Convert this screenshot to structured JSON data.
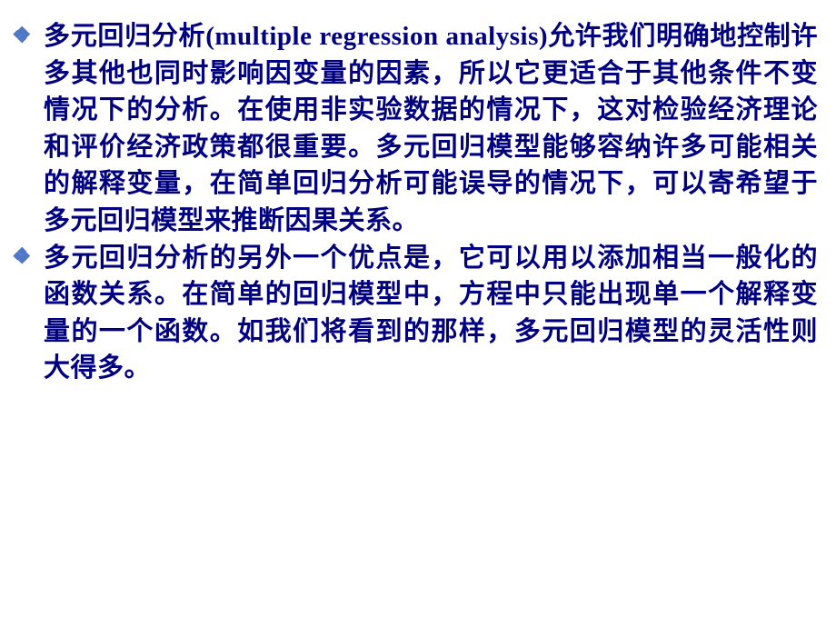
{
  "slide": {
    "text_color": "#000080",
    "background_color": "#ffffff",
    "bullet_icon_color": "#5078c8",
    "font_size": 29,
    "bullets": [
      {
        "text_parts": [
          {
            "type": "cjk",
            "text": "多元回归分析"
          },
          {
            "type": "en",
            "text": "(multiple regression analysis)"
          },
          {
            "type": "cjk",
            "text": "允许我们明确地控制许多其他也同时影响因变量的因素，所以它更适合于其他条件不变情况下的分析。在使用非实验数据的情况下，这对检验经济理论和评价经济政策都很重要。多元回归模型能够容纳许多可能相关的解释变量，在简单回归分析可能误导的情况下，可以寄希望于多元回归模型来推断因果关系。"
          }
        ]
      },
      {
        "text_parts": [
          {
            "type": "cjk",
            "text": "多元回归分析的另外一个优点是，它可以用以添加相当一般化的函数关系。在简单的回归模型中，方程中只能出现单一个解释变量的一个函数。如我们将看到的那样，多元回归模型的灵活性则大得多。"
          }
        ]
      }
    ]
  }
}
